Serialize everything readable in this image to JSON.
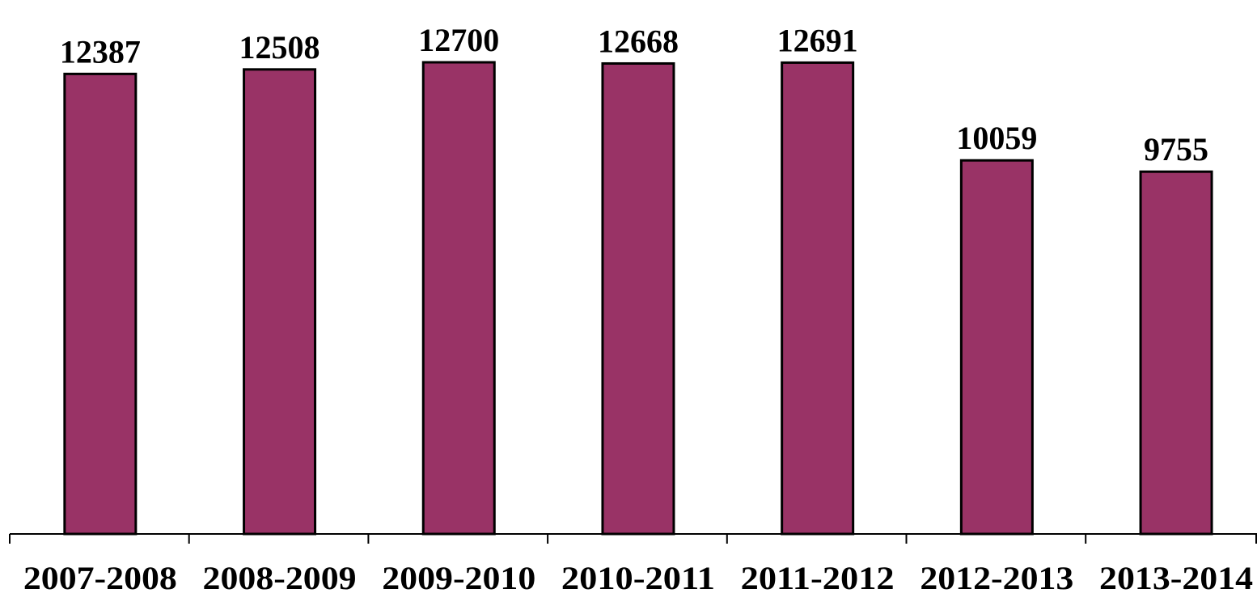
{
  "chart_data": {
    "type": "bar",
    "categories": [
      "2007-2008",
      "2008-2009",
      "2009-2010",
      "2010-2011",
      "2011-2012",
      "2012-2013",
      "2013-2014"
    ],
    "values": [
      12387,
      12508,
      12700,
      12668,
      12691,
      10059,
      9755
    ],
    "data_labels": [
      "12387",
      "12508",
      "12700",
      "12668",
      "12691",
      "10059",
      "9755"
    ],
    "title": "",
    "xlabel": "",
    "ylabel": "",
    "ylim": [
      0,
      12700
    ],
    "grid": false,
    "legend": "none",
    "bar_color": "#993366",
    "bar_outline_color": "#000000"
  }
}
